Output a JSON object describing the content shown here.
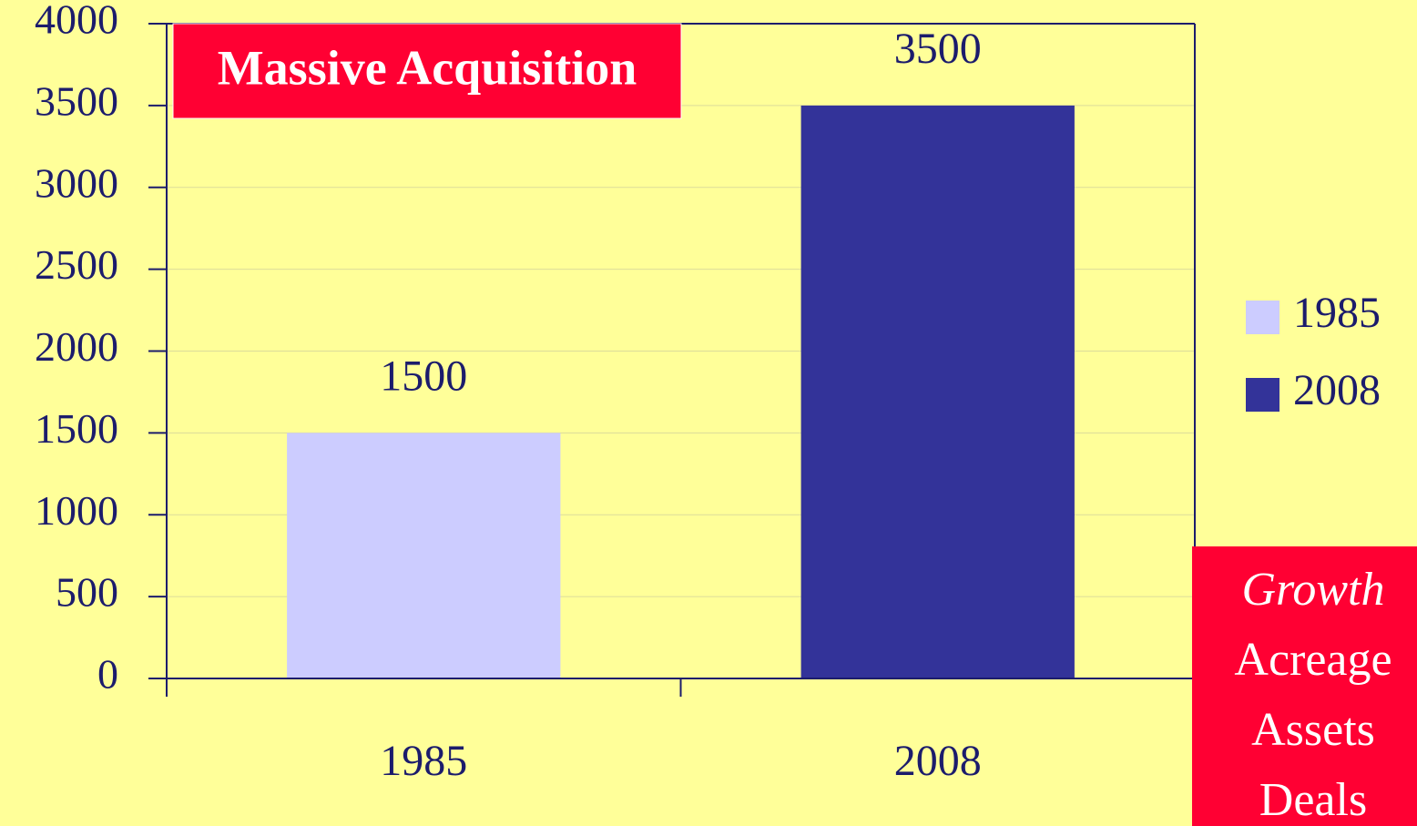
{
  "chart_data": {
    "type": "bar",
    "categories": [
      "1985",
      "2008"
    ],
    "values": [
      1500,
      3500
    ],
    "colors": [
      "#ccccff",
      "#333399"
    ],
    "ylim": [
      0,
      4000
    ],
    "yticks": [
      0,
      500,
      1000,
      1500,
      2000,
      2500,
      3000,
      3500,
      4000
    ],
    "grid": true,
    "legend": "right",
    "annotations": [
      {
        "text": "Massive Acquisition"
      },
      {
        "lines": [
          "Growth",
          "Acreage",
          "Assets",
          "Deals"
        ]
      }
    ]
  }
}
